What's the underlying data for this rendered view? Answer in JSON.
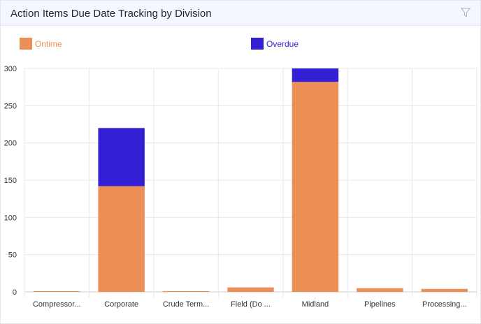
{
  "header": {
    "title": "Action Items Due Date Tracking by Division",
    "filter_icon": "filter-icon"
  },
  "chart_data": {
    "type": "bar",
    "stacked": true,
    "title": "",
    "xlabel": "",
    "ylabel": "",
    "categories": [
      "Compressor...",
      "Corporate",
      "Crude Term...",
      "Field (Do ...",
      "Midland",
      "Pipelines",
      "Processing..."
    ],
    "series": [
      {
        "name": "Ontime",
        "color": "#ec8f57",
        "values": [
          1,
          142,
          1,
          6,
          282,
          5,
          4
        ]
      },
      {
        "name": "Overdue",
        "color": "#331fd4",
        "values": [
          0,
          78,
          0,
          0,
          25,
          0,
          0
        ]
      }
    ],
    "ylim": [
      0,
      300
    ],
    "yticks": [
      0,
      50,
      100,
      150,
      200,
      250,
      300
    ],
    "grid": true,
    "legend": "top"
  }
}
